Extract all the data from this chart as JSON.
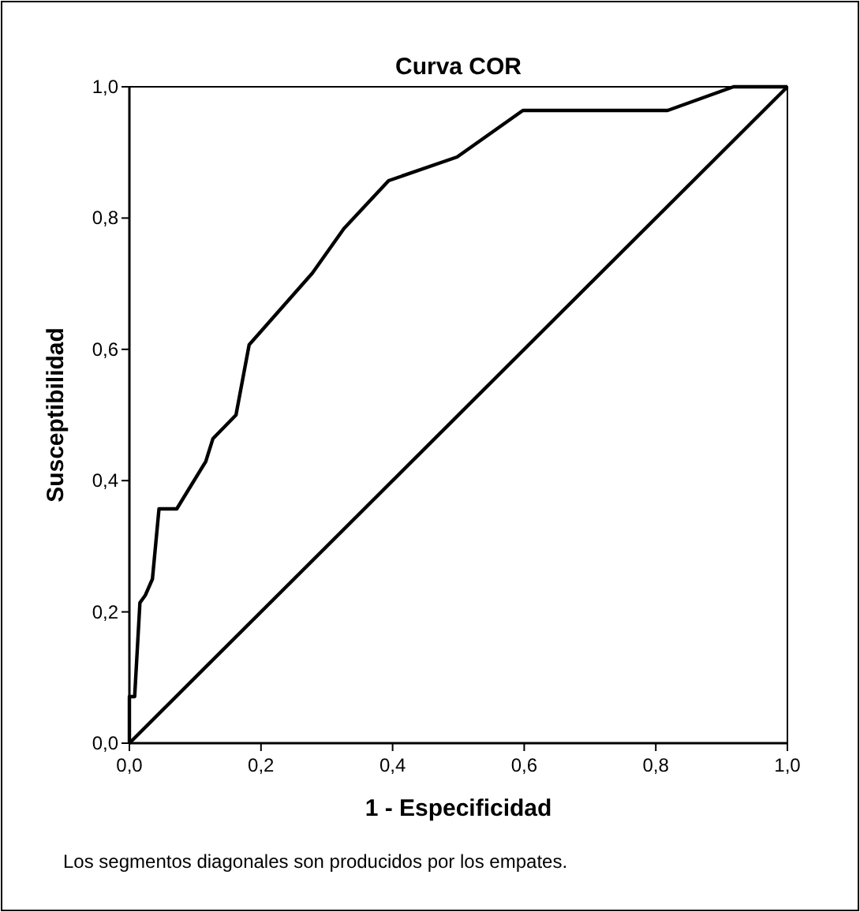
{
  "chart_data": {
    "type": "line",
    "title": "Curva COR",
    "xlabel": "1 - Especificidad",
    "ylabel": "Susceptibilidad",
    "annotations": [
      "Los segmentos diagonales son producidos por los empates."
    ],
    "series": [
      {
        "color": "#000000",
        "x": [
          0,
          0,
          0.008,
          0.016,
          0.024,
          0.035,
          0.045,
          0.072,
          0.116,
          0.127,
          0.162,
          0.182,
          0.278,
          0.326,
          0.394,
          0.498,
          0.598,
          0.818,
          0.918,
          1
        ],
        "values": [
          0,
          0.071,
          0.071,
          0.214,
          0.225,
          0.25,
          0.357,
          0.357,
          0.429,
          0.464,
          0.5,
          0.607,
          0.716,
          0.784,
          0.857,
          0.893,
          0.964,
          0.964,
          1,
          1
        ]
      },
      {
        "color": "#000000",
        "x": [
          0,
          1
        ],
        "values": [
          0,
          1
        ]
      }
    ],
    "xlim": [
      0,
      1
    ],
    "ylim": [
      0,
      1
    ],
    "xticks": [
      {
        "value": 0,
        "label": "0,0"
      },
      {
        "value": 0.2,
        "label": "0,2"
      },
      {
        "value": 0.4,
        "label": "0,4"
      },
      {
        "value": 0.6,
        "label": "0,6"
      },
      {
        "value": 0.8,
        "label": "0,8"
      },
      {
        "value": 1,
        "label": "1,0"
      }
    ],
    "yticks": [
      {
        "value": 0,
        "label": "0,0"
      },
      {
        "value": 0.2,
        "label": "0,2"
      },
      {
        "value": 0.4,
        "label": "0,4"
      },
      {
        "value": 0.6,
        "label": "0,6"
      },
      {
        "value": 0.8,
        "label": "0,8"
      },
      {
        "value": 1,
        "label": "1,0"
      }
    ],
    "grid": false,
    "marker": "none",
    "line_style": "solid"
  }
}
